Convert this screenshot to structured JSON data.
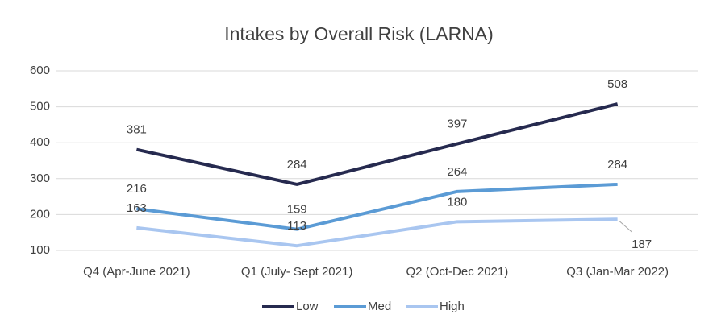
{
  "chart_data": {
    "type": "line",
    "title": "Intakes by Overall Risk (LARNA)",
    "categories": [
      "Q4 (Apr-June 2021)",
      "Q1 (July- Sept 2021)",
      "Q2 (Oct-Dec 2021)",
      "Q3 (Jan-Mar 2022)"
    ],
    "series": [
      {
        "name": "Low",
        "color": "#262a4f",
        "values": [
          381,
          284,
          397,
          508
        ]
      },
      {
        "name": "Med",
        "color": "#5b9bd5",
        "values": [
          216,
          159,
          264,
          284
        ]
      },
      {
        "name": "High",
        "color": "#a9c6f0",
        "values": [
          163,
          113,
          180,
          187
        ]
      }
    ],
    "ylim": [
      100,
      600
    ],
    "yticks": [
      100,
      200,
      300,
      400,
      500,
      600
    ],
    "grid": true,
    "legend": "bottom"
  }
}
